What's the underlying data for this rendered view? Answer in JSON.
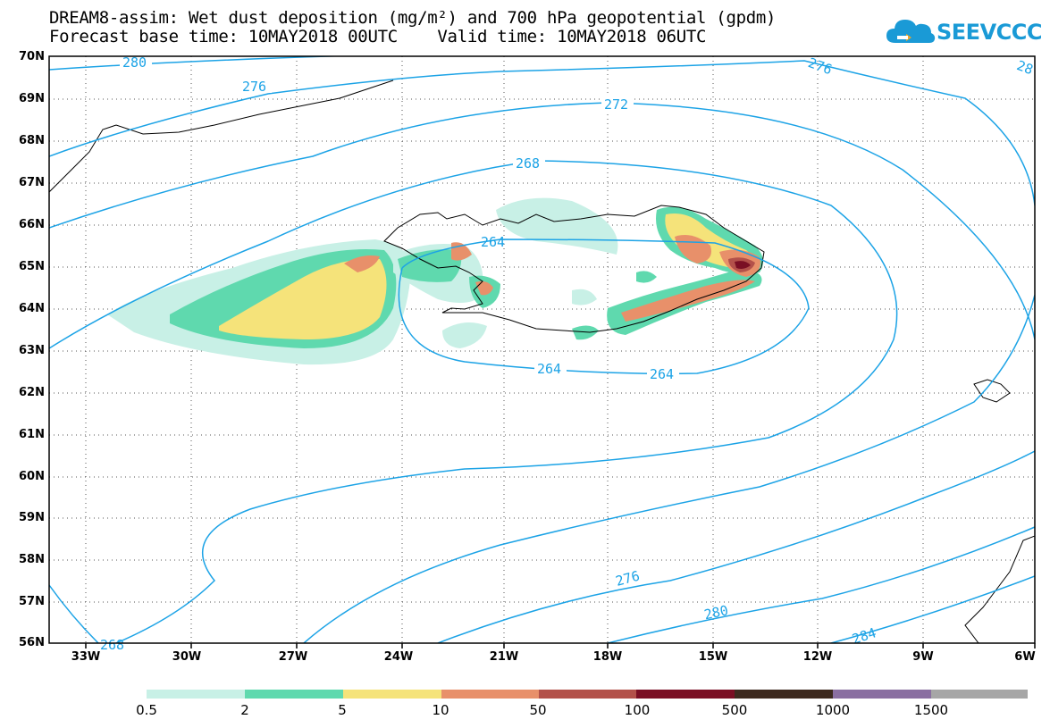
{
  "header": {
    "title_line1": "DREAM8-assim: Wet dust deposition (mg/m²) and 700 hPa geopotential (gpdm)",
    "title_line2": "Forecast base time: 10MAY2018 00UTC    Valid time: 10MAY2018 06UTC",
    "logo_text": "SEEVCCC",
    "logo_color": "#1a9ad6"
  },
  "map": {
    "lat_labels": [
      "70N",
      "69N",
      "68N",
      "67N",
      "66N",
      "65N",
      "64N",
      "63N",
      "62N",
      "61N",
      "60N",
      "59N",
      "58N",
      "57N",
      "56N"
    ],
    "lon_labels": [
      "33W",
      "30W",
      "27W",
      "24W",
      "21W",
      "18W",
      "15W",
      "12W",
      "9W",
      "6W"
    ],
    "contour_color": "#1ca3e6",
    "contour_labels": [
      "280",
      "276",
      "272",
      "268",
      "264",
      "264",
      "264",
      "276",
      "276",
      "280",
      "284",
      "268",
      "28"
    ]
  },
  "legend": {
    "colors": [
      "#c8f0e6",
      "#5fd9ae",
      "#f5e37a",
      "#e8906a",
      "#b3514a",
      "#7a0f24",
      "#3d2a1f",
      "#8a6fa1",
      "#a6a6a6"
    ],
    "labels": [
      "0.5",
      "2",
      "5",
      "10",
      "50",
      "100",
      "500",
      "1000",
      "1500"
    ]
  }
}
